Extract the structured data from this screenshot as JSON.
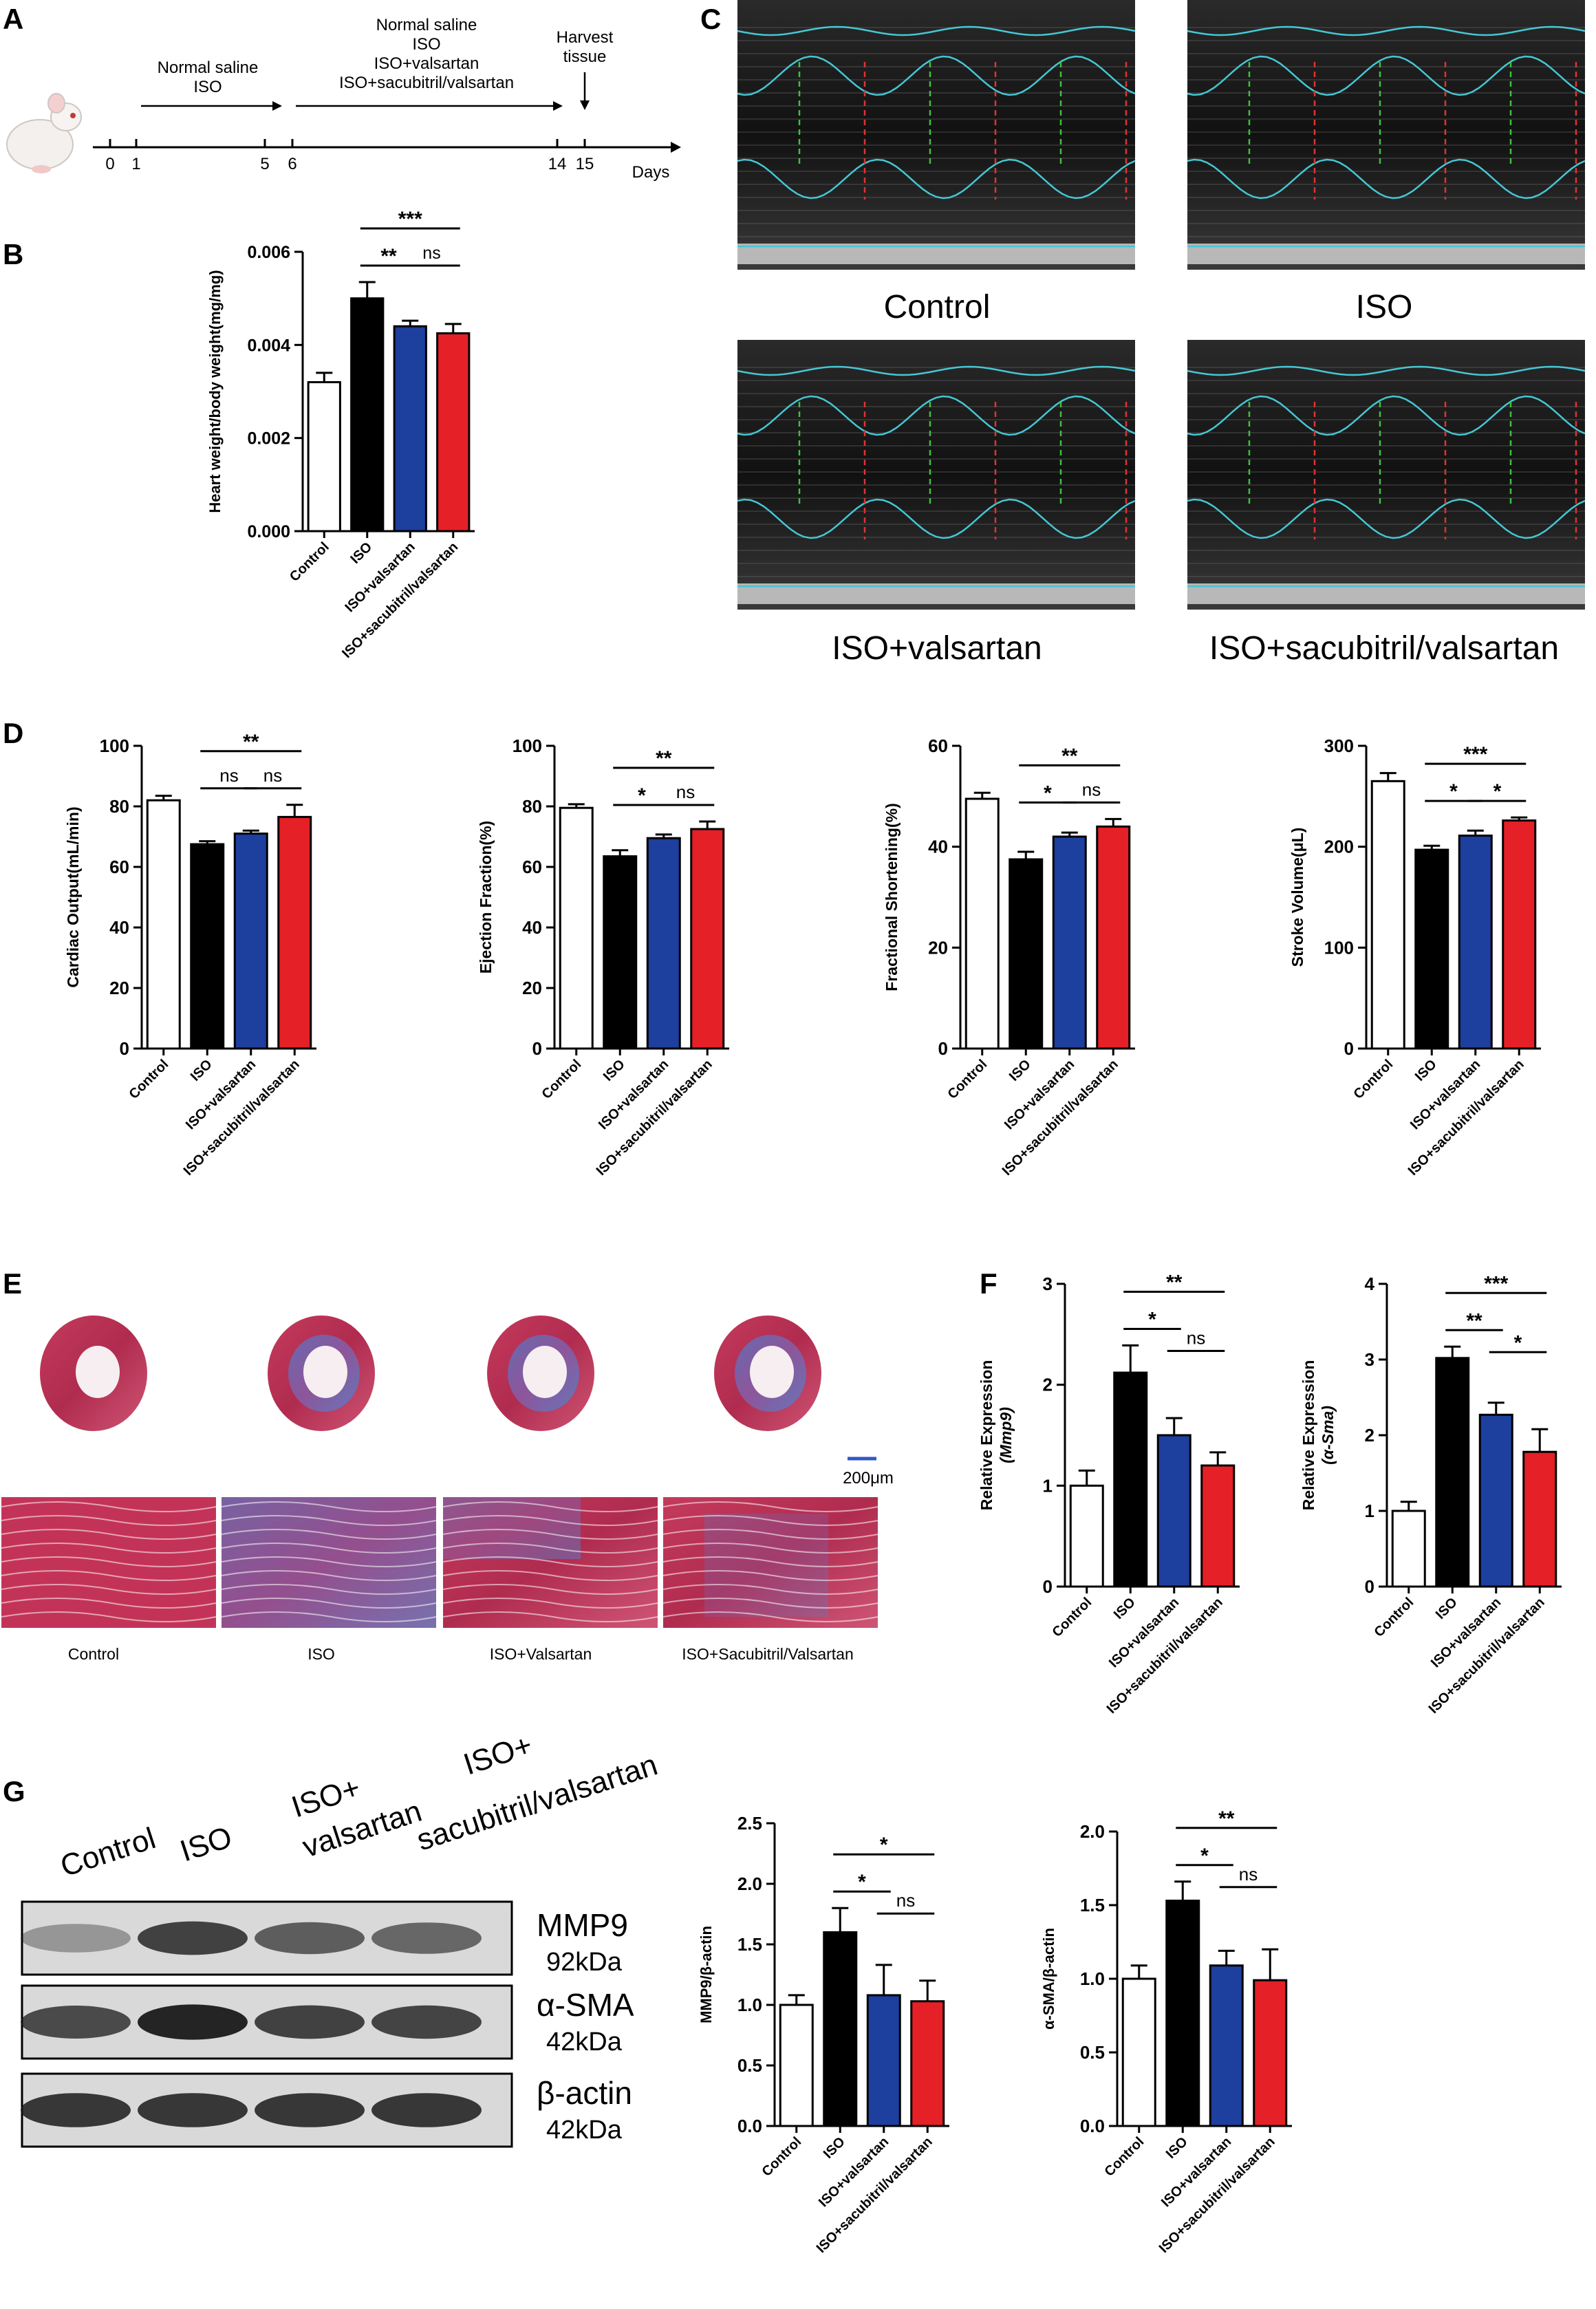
{
  "panel_letters": [
    "A",
    "B",
    "C",
    "D",
    "E",
    "F",
    "G"
  ],
  "colors": {
    "control": "#ffffff",
    "iso": "#000000",
    "valsartan": "#1d3f9e",
    "sacubitril": "#e52026",
    "cyan": "#45c7d3"
  },
  "timeline": {
    "ticks": [
      "0",
      "1",
      "5",
      "6",
      "14",
      "15"
    ],
    "unit": "Days",
    "group1": [
      "Normal saline",
      "ISO"
    ],
    "group2": [
      "Normal saline",
      "ISO",
      "ISO+valsartan",
      "ISO+sacubitril/valsartan"
    ],
    "harvest": [
      "Harvest",
      "tissue"
    ]
  },
  "echo_labels": [
    "Control",
    "ISO",
    "ISO+valsartan",
    "ISO+sacubitril/valsartan"
  ],
  "histo": {
    "labels": [
      "Control",
      "ISO",
      "ISO+Valsartan",
      "ISO+Sacubitril/Valsartan"
    ],
    "scale_bar": "200μm"
  },
  "western": {
    "lanes": [
      [
        "Control"
      ],
      [
        "ISO"
      ],
      [
        "ISO+",
        "valsartan"
      ],
      [
        "ISO+",
        "sacubitril/valsartan"
      ]
    ],
    "bands": [
      {
        "name": "MMP9",
        "size": "92kDa"
      },
      {
        "name": "α-SMA",
        "size": "42kDa"
      },
      {
        "name": "β-actin",
        "size": "42kDa"
      }
    ]
  },
  "chart_data": [
    {
      "id": "B",
      "type": "bar",
      "categories": [
        "Control",
        "ISO",
        "ISO+valsartan",
        "ISO+sacubitril/valsartan"
      ],
      "values": [
        0.0032,
        0.005,
        0.0044,
        0.00425
      ],
      "errors": [
        0.0002,
        0.00035,
        0.00012,
        0.0002
      ],
      "ylabel": "Heart weight/body weight(mg/mg)",
      "ylim": [
        0,
        0.006
      ],
      "yticks": [
        "0.000",
        "0.002",
        "0.004",
        "0.006"
      ],
      "sig": [
        {
          "from": 1,
          "to": 3,
          "text": "***"
        },
        {
          "from": 1,
          "to": 2,
          "text": "**"
        },
        {
          "from": 2,
          "to": 3,
          "text": "ns"
        }
      ]
    },
    {
      "id": "D1",
      "type": "bar",
      "categories": [
        "Control",
        "ISO",
        "ISO+valsartan",
        "ISO+sacubitril/valsartan"
      ],
      "values": [
        82,
        67.5,
        71,
        76.5
      ],
      "errors": [
        1.5,
        1,
        1,
        4
      ],
      "ylabel": "Cardiac Output(mL/min)",
      "ylim": [
        0,
        100
      ],
      "yticks": [
        "0",
        "20",
        "40",
        "60",
        "80",
        "100"
      ],
      "sig": [
        {
          "from": 1,
          "to": 3,
          "text": "**"
        },
        {
          "from": 1,
          "to": 2,
          "text": "ns"
        },
        {
          "from": 2,
          "to": 3,
          "text": "ns"
        }
      ]
    },
    {
      "id": "D2",
      "type": "bar",
      "categories": [
        "Control",
        "ISO",
        "ISO+valsartan",
        "ISO+sacubitril/valsartan"
      ],
      "values": [
        79.5,
        63.5,
        69.5,
        72.5
      ],
      "errors": [
        1.2,
        2,
        1.2,
        2.5
      ],
      "ylabel": "Ejection Fraction(%)",
      "ylim": [
        0,
        100
      ],
      "yticks": [
        "0",
        "20",
        "40",
        "60",
        "80",
        "100"
      ],
      "sig": [
        {
          "from": 1,
          "to": 3,
          "text": "**"
        },
        {
          "from": 1,
          "to": 2,
          "text": "*"
        },
        {
          "from": 2,
          "to": 3,
          "text": "ns"
        }
      ]
    },
    {
      "id": "D3",
      "type": "bar",
      "categories": [
        "Control",
        "ISO",
        "ISO+valsartan",
        "ISO+sacubitril/valsartan"
      ],
      "values": [
        49.5,
        37.5,
        42,
        44
      ],
      "errors": [
        1.2,
        1.5,
        0.8,
        1.5
      ],
      "ylabel": "Fractional Shortening(%)",
      "ylim": [
        0,
        60
      ],
      "yticks": [
        "0",
        "20",
        "40",
        "60"
      ],
      "sig": [
        {
          "from": 1,
          "to": 3,
          "text": "**"
        },
        {
          "from": 1,
          "to": 2,
          "text": "*"
        },
        {
          "from": 2,
          "to": 3,
          "text": "ns"
        }
      ]
    },
    {
      "id": "D4",
      "type": "bar",
      "categories": [
        "Control",
        "ISO",
        "ISO+valsartan",
        "ISO+sacubitril/valsartan"
      ],
      "values": [
        265,
        197,
        211,
        226
      ],
      "errors": [
        8,
        4,
        5,
        3
      ],
      "ylabel": "Stroke Volume(μL)",
      "ylim": [
        0,
        300
      ],
      "yticks": [
        "0",
        "100",
        "200",
        "300"
      ],
      "sig": [
        {
          "from": 1,
          "to": 3,
          "text": "***"
        },
        {
          "from": 1,
          "to": 2,
          "text": "*"
        },
        {
          "from": 2,
          "to": 3,
          "text": "*"
        }
      ]
    },
    {
      "id": "F1",
      "type": "bar",
      "categories": [
        "Control",
        "ISO",
        "ISO+valsartan",
        "ISO+sacubitril/valsartan"
      ],
      "values": [
        1.0,
        2.12,
        1.5,
        1.2
      ],
      "errors": [
        0.15,
        0.27,
        0.17,
        0.13
      ],
      "ylabel": "Relative Expression",
      "ylabel2": "(Mmp9)",
      "ylim": [
        0,
        3
      ],
      "yticks": [
        "0",
        "1",
        "2",
        "3"
      ],
      "sig": [
        {
          "from": 1,
          "to": 3,
          "text": "**"
        },
        {
          "from": 1,
          "to": 2,
          "text": "*"
        },
        {
          "from": 2,
          "to": 3,
          "text": "ns"
        }
      ]
    },
    {
      "id": "F2",
      "type": "bar",
      "categories": [
        "Control",
        "ISO",
        "ISO+valsartan",
        "ISO+sacubitril/valsartan"
      ],
      "values": [
        1.0,
        3.02,
        2.27,
        1.78
      ],
      "errors": [
        0.12,
        0.15,
        0.16,
        0.3
      ],
      "ylabel": "Relative Expression",
      "ylabel2": "(α-Sma)",
      "ylim": [
        0,
        4
      ],
      "yticks": [
        "0",
        "1",
        "2",
        "3",
        "4"
      ],
      "sig": [
        {
          "from": 1,
          "to": 3,
          "text": "***"
        },
        {
          "from": 1,
          "to": 2,
          "text": "**"
        },
        {
          "from": 2,
          "to": 3,
          "text": "*"
        }
      ]
    },
    {
      "id": "G1",
      "type": "bar",
      "categories": [
        "Control",
        "ISO",
        "ISO+valsartan",
        "ISO+sacubitril/valsartan"
      ],
      "values": [
        1.0,
        1.6,
        1.08,
        1.03
      ],
      "errors": [
        0.08,
        0.2,
        0.25,
        0.17
      ],
      "ylabel": "MMP9/β-actin",
      "ylim": [
        0,
        2.5
      ],
      "yticks": [
        "0.0",
        "0.5",
        "1.0",
        "1.5",
        "2.0",
        "2.5"
      ],
      "sig": [
        {
          "from": 1,
          "to": 3,
          "text": "*"
        },
        {
          "from": 1,
          "to": 2,
          "text": "*"
        },
        {
          "from": 2,
          "to": 3,
          "text": "ns"
        }
      ]
    },
    {
      "id": "G2",
      "type": "bar",
      "categories": [
        "Control",
        "ISO",
        "ISO+valsartan",
        "ISO+sacubitril/valsartan"
      ],
      "values": [
        1.0,
        1.53,
        1.09,
        0.99
      ],
      "errors": [
        0.09,
        0.13,
        0.1,
        0.21
      ],
      "ylabel": "α-SMA/β-actin",
      "ylim": [
        0,
        2.0
      ],
      "yticks": [
        "0.0",
        "0.5",
        "1.0",
        "1.5",
        "2.0"
      ],
      "sig": [
        {
          "from": 1,
          "to": 3,
          "text": "**"
        },
        {
          "from": 1,
          "to": 2,
          "text": "*"
        },
        {
          "from": 2,
          "to": 3,
          "text": "ns"
        }
      ]
    }
  ]
}
